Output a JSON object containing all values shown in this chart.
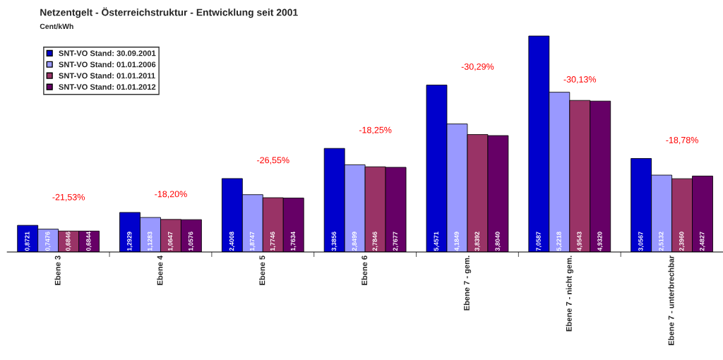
{
  "chart_data": {
    "type": "bar",
    "title": "Netzentgelt - Österreichstruktur - Entwicklung seit 2001",
    "subtitle": "Cent/kWh",
    "categories": [
      "Ebene 3",
      "Ebene 4",
      "Ebene 5",
      "Ebene 6",
      "Ebene 7 - gem.",
      "Ebene 7 - nicht gem.",
      "Ebene 7 - unterbrechbar"
    ],
    "series": [
      {
        "name": "SNT-VO Stand: 30.09.2001",
        "color": "#0000cc",
        "values": [
          0.8721,
          1.2929,
          2.4008,
          3.3856,
          5.4571,
          7.0587,
          3.0567
        ],
        "value_labels": [
          "0,8721",
          "1,2929",
          "2,4008",
          "3,3856",
          "5,4571",
          "7,0587",
          "3,0567"
        ]
      },
      {
        "name": "SNT-VO Stand: 01.01.2006",
        "color": "#9999ff",
        "values": [
          0.7476,
          1.1283,
          1.8747,
          2.8499,
          4.1849,
          5.2218,
          2.5132
        ],
        "value_labels": [
          "0,7476",
          "1,1283",
          "1,8747",
          "2,8499",
          "4,1849",
          "5,2218",
          "2,5132"
        ]
      },
      {
        "name": "SNT-VO Stand: 01.01.2011",
        "color": "#993366",
        "values": [
          0.6846,
          1.0647,
          1.7746,
          2.7846,
          3.8392,
          4.9543,
          2.396
        ],
        "value_labels": [
          "0,6846",
          "1,0647",
          "1,7746",
          "2,7846",
          "3,8392",
          "4,9543",
          "2,3960"
        ]
      },
      {
        "name": "SNT-VO Stand: 01.01.2012",
        "color": "#660066",
        "values": [
          0.6844,
          1.0576,
          1.7634,
          2.7677,
          3.804,
          4.932,
          2.4827
        ],
        "value_labels": [
          "0,6844",
          "1,0576",
          "1,7634",
          "2,7677",
          "3,8040",
          "4,9320",
          "2,4827"
        ]
      }
    ],
    "annotations": [
      "-21,53%",
      "-18,20%",
      "-26,55%",
      "-18,25%",
      "-30,29%",
      "-30,13%",
      "-18,78%"
    ],
    "legend": "top left",
    "grid": false,
    "tick_labels": "x"
  }
}
